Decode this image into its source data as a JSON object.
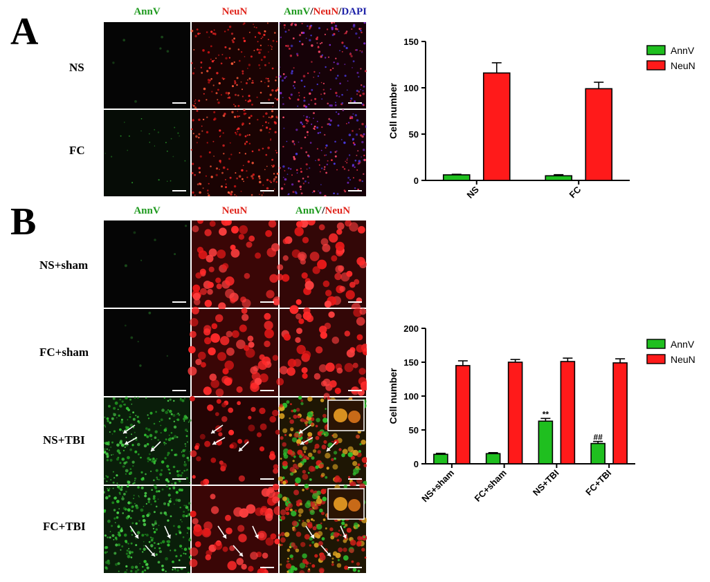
{
  "panelA": {
    "letter": "A",
    "col_headers": [
      {
        "parts": [
          {
            "text": "AnnV",
            "color": "green"
          }
        ]
      },
      {
        "parts": [
          {
            "text": "NeuN",
            "color": "red"
          }
        ]
      },
      {
        "parts": [
          {
            "text": "AnnV",
            "color": "green"
          },
          {
            "text": "/",
            "color": "black"
          },
          {
            "text": "NeuN",
            "color": "red"
          },
          {
            "text": "/",
            "color": "black"
          },
          {
            "text": "DAPI",
            "color": "blue"
          }
        ]
      }
    ],
    "row_labels": [
      "NS",
      "FC"
    ]
  },
  "panelB": {
    "letter": "B",
    "col_headers": [
      {
        "parts": [
          {
            "text": "AnnV",
            "color": "green"
          }
        ]
      },
      {
        "parts": [
          {
            "text": "NeuN",
            "color": "red"
          }
        ]
      },
      {
        "parts": [
          {
            "text": "AnnV",
            "color": "green"
          },
          {
            "text": "/",
            "color": "black"
          },
          {
            "text": "NeuN",
            "color": "red"
          }
        ]
      }
    ],
    "row_labels": [
      "NS+sham",
      "FC+sham",
      "NS+TBI",
      "FC+TBI"
    ]
  },
  "colors": {
    "annv": "#1fbf1f",
    "neun": "#ff1a1a",
    "green_text": "#1f9a1f",
    "red_text": "#e0241b",
    "blue_text": "#1f23a8"
  },
  "chart_data": [
    {
      "type": "bar",
      "categories": [
        "NS",
        "FC"
      ],
      "series": [
        {
          "name": "AnnV",
          "values": [
            6,
            5
          ],
          "errors": [
            0.6,
            1.2
          ]
        },
        {
          "name": "NeuN",
          "values": [
            116,
            99
          ],
          "errors": [
            11,
            7
          ]
        }
      ],
      "ylabel": "Cell number",
      "ylim": [
        0,
        150
      ],
      "yticks": [
        0,
        50,
        100,
        150
      ],
      "legend": "top-right",
      "annotations": []
    },
    {
      "type": "bar",
      "categories": [
        "NS+sham",
        "FC+sham",
        "NS+TBI",
        "FC+TBI"
      ],
      "series": [
        {
          "name": "AnnV",
          "values": [
            14,
            15,
            63,
            30
          ],
          "errors": [
            1.5,
            1.5,
            4,
            3
          ]
        },
        {
          "name": "NeuN",
          "values": [
            145,
            150,
            151,
            149
          ],
          "errors": [
            7,
            4,
            5,
            6
          ]
        }
      ],
      "ylabel": "Cell number",
      "ylim": [
        0,
        200
      ],
      "yticks": [
        0,
        50,
        100,
        150,
        200
      ],
      "legend": "top-right",
      "annotations": [
        {
          "category_index": 2,
          "series_index": 0,
          "text": "**"
        },
        {
          "category_index": 3,
          "series_index": 0,
          "text": "##"
        }
      ]
    }
  ]
}
